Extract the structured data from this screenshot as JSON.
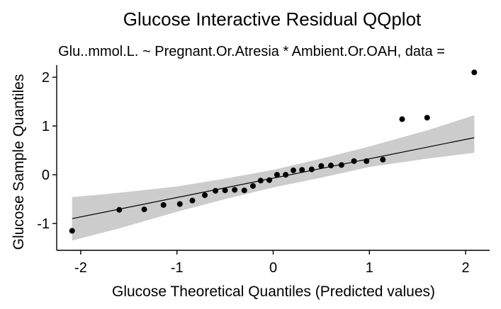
{
  "chart_data": {
    "type": "scatter",
    "title": "Glucose Interactive Residual QQplot",
    "subtitle": "Glu..mmol.L. ~ Pregnant.Or.Atresia * Ambient.Or.OAH, data =",
    "xlabel": "Glucose Theoretical Quantiles (Predicted values)",
    "ylabel": "Glucose Sample Quantiles",
    "xlim": [
      -2.25,
      2.25
    ],
    "ylim": [
      -1.55,
      2.25
    ],
    "x_ticks": [
      -2,
      -1,
      0,
      1,
      2
    ],
    "x_tick_labels": [
      "-2",
      "-1",
      "0",
      "1",
      "2"
    ],
    "y_ticks": [
      -1,
      0,
      1,
      2
    ],
    "y_tick_labels": [
      "-1",
      "0",
      "1",
      "2"
    ],
    "grid": false,
    "points": {
      "x": [
        -2.09,
        -1.6,
        -1.34,
        -1.14,
        -0.97,
        -0.84,
        -0.71,
        -0.6,
        -0.5,
        -0.4,
        -0.3,
        -0.21,
        -0.13,
        -0.04,
        0.04,
        0.13,
        0.21,
        0.3,
        0.4,
        0.5,
        0.6,
        0.71,
        0.84,
        0.97,
        1.14,
        1.34,
        1.6,
        2.09
      ],
      "y": [
        -1.15,
        -0.72,
        -0.71,
        -0.62,
        -0.6,
        -0.53,
        -0.42,
        -0.33,
        -0.32,
        -0.31,
        -0.32,
        -0.23,
        -0.12,
        -0.11,
        0.0,
        0.0,
        0.09,
        0.1,
        0.11,
        0.18,
        0.19,
        0.2,
        0.28,
        0.28,
        0.31,
        1.14,
        1.17,
        2.1
      ]
    },
    "reference_line": {
      "x": [
        -2.09,
        2.09
      ],
      "y": [
        -0.9,
        0.76
      ]
    },
    "confidence_band": {
      "x": [
        -2.09,
        -1.6,
        -1.0,
        -0.5,
        0.0,
        0.5,
        1.0,
        1.6,
        2.09
      ],
      "lower": [
        -1.35,
        -1.1,
        -0.76,
        -0.5,
        -0.26,
        -0.06,
        0.16,
        0.33,
        0.45
      ],
      "upper": [
        -0.46,
        -0.37,
        -0.24,
        -0.08,
        0.1,
        0.33,
        0.58,
        0.91,
        1.22
      ]
    },
    "colors": {
      "points": "#000000",
      "line": "#000000",
      "band": "#cccccc",
      "axis": "#000000"
    }
  }
}
